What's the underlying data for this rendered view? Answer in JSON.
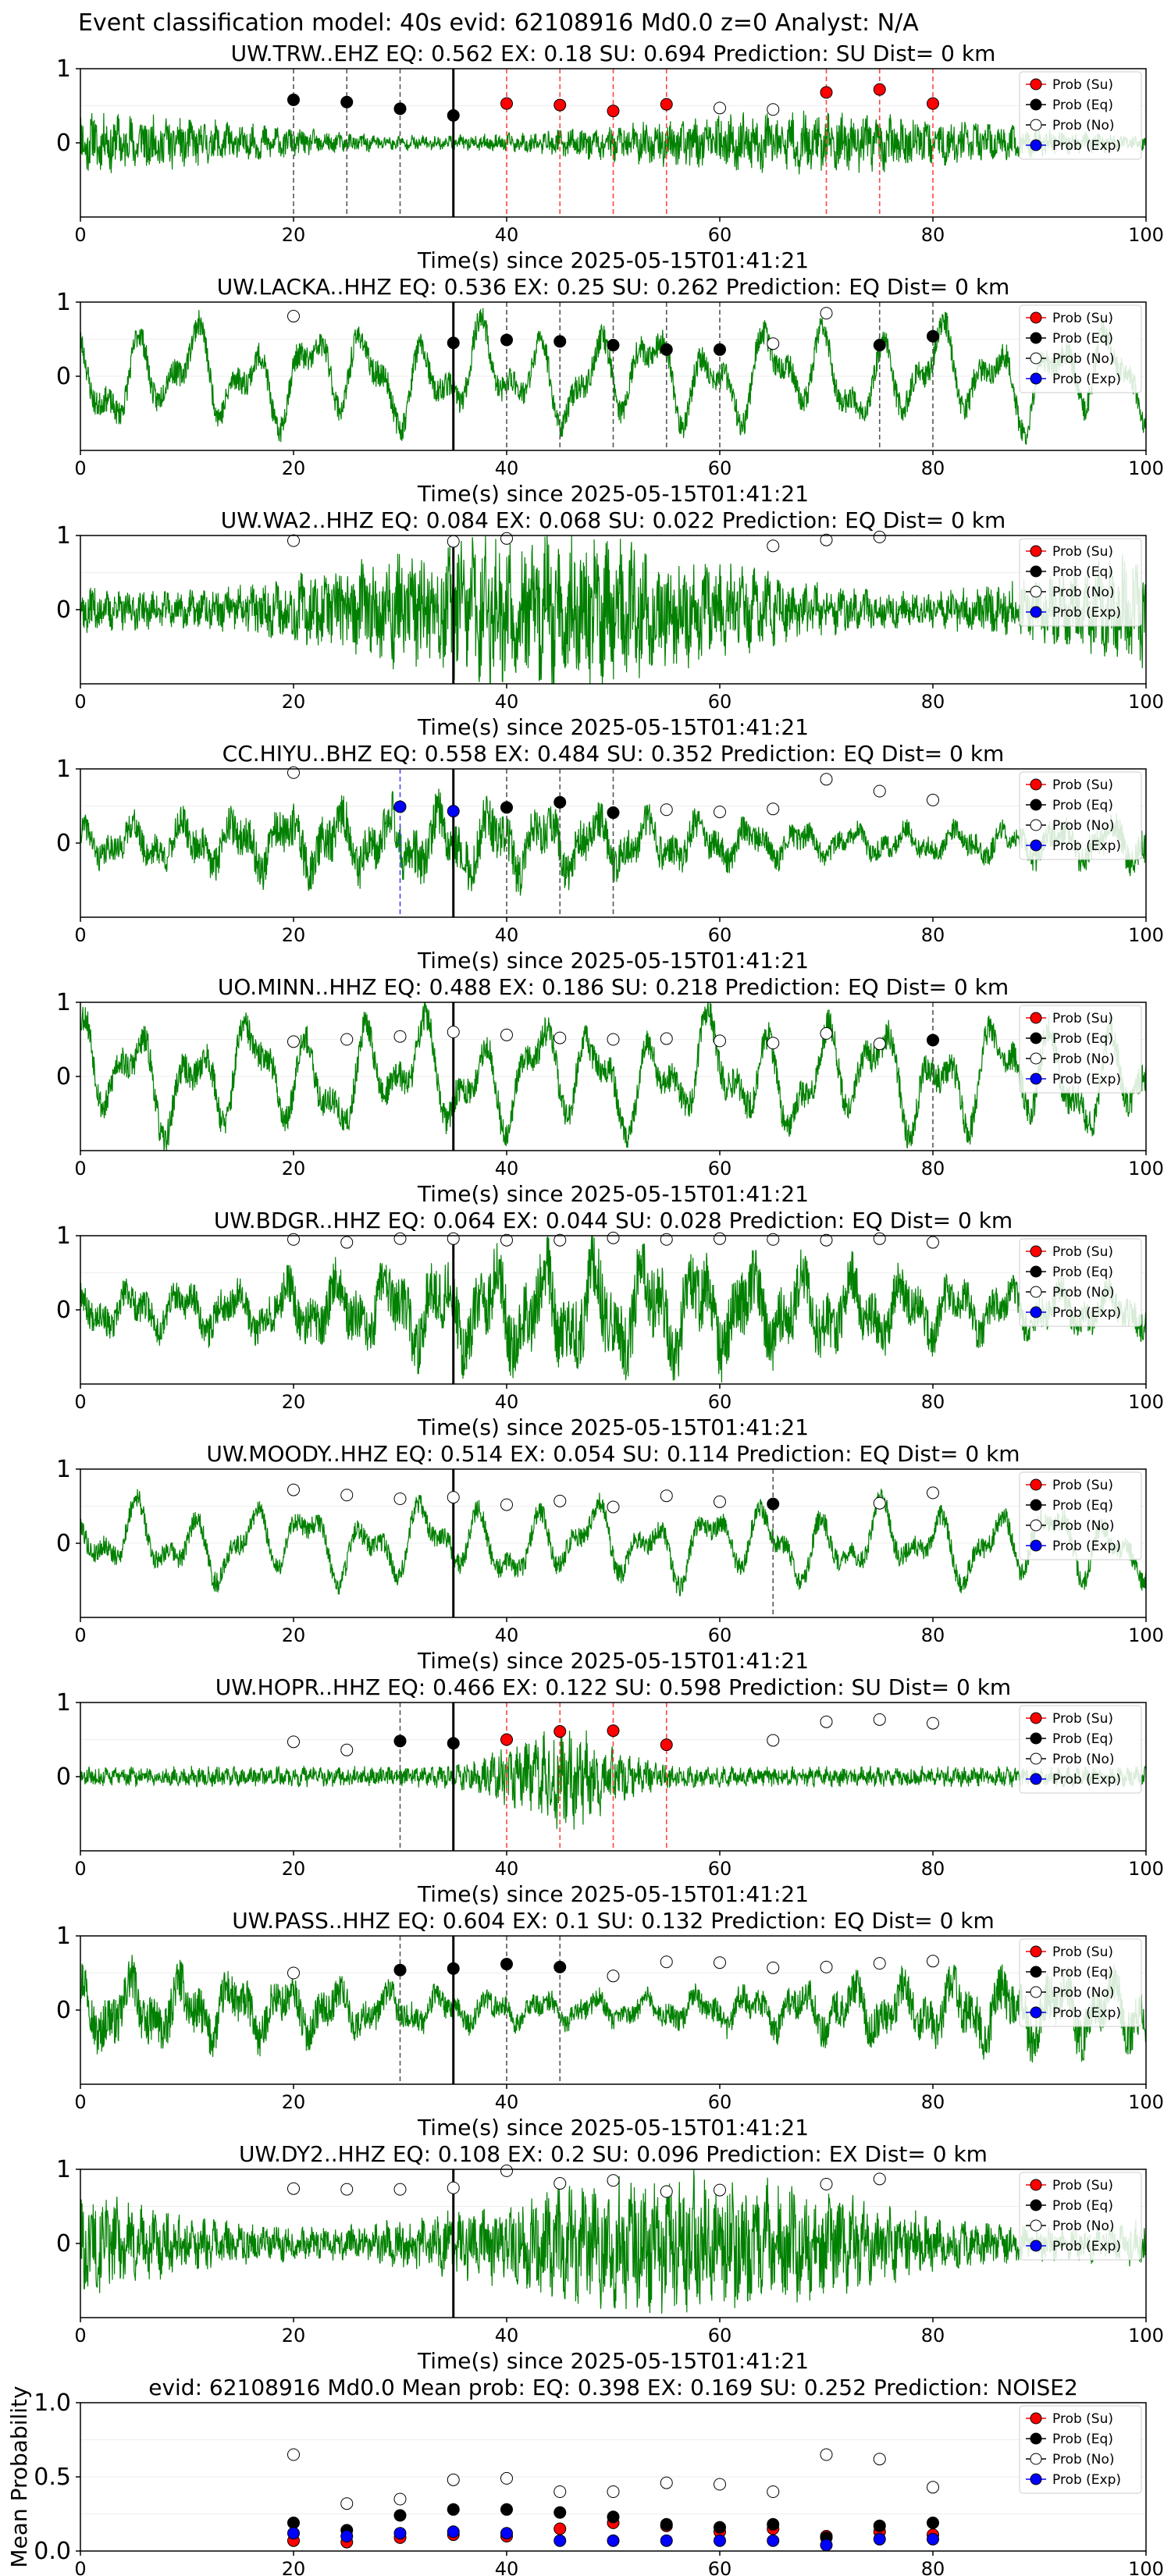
{
  "suptitle": "Event classification model: 40s evid: 62108916 Md0.0 z=0 Analyst: N/A",
  "legend": [
    "Prob (Su)",
    "Prob (Eq)",
    "Prob (No)",
    "Prob (Exp)"
  ],
  "colors": {
    "su": "#ff0000",
    "eq": "#000000",
    "no": "#ffffff",
    "exp": "#0000ff",
    "trace": "#008000"
  },
  "xlabel": "Time(s) since 2025-05-15T01:41:21",
  "chart_data": [
    {
      "type": "line",
      "title": "UW.TRW..EHZ   EQ: 0.562  EX: 0.18  SU: 0.694   Prediction: SU    Dist= 0 km",
      "xlim": [
        0,
        100
      ],
      "ylim": [
        -1,
        1
      ],
      "xticks": [
        0,
        20,
        40,
        60,
        80,
        100
      ],
      "yticks": [
        0,
        1
      ],
      "trace": {
        "seed": 11,
        "style": "hf",
        "amp": 0.22
      },
      "pick_line": 35,
      "points": [
        {
          "x": 20,
          "y": 0.58,
          "c": "eq"
        },
        {
          "x": 25,
          "y": 0.55,
          "c": "eq"
        },
        {
          "x": 30,
          "y": 0.46,
          "c": "eq"
        },
        {
          "x": 35,
          "y": 0.37,
          "c": "eq"
        },
        {
          "x": 40,
          "y": 0.53,
          "c": "su"
        },
        {
          "x": 45,
          "y": 0.51,
          "c": "su"
        },
        {
          "x": 50,
          "y": 0.43,
          "c": "su"
        },
        {
          "x": 55,
          "y": 0.52,
          "c": "su"
        },
        {
          "x": 60,
          "y": 0.47,
          "c": "no"
        },
        {
          "x": 65,
          "y": 0.45,
          "c": "no"
        },
        {
          "x": 70,
          "y": 0.68,
          "c": "su"
        },
        {
          "x": 75,
          "y": 0.72,
          "c": "su"
        },
        {
          "x": 80,
          "y": 0.53,
          "c": "su"
        }
      ]
    },
    {
      "type": "line",
      "title": "UW.LACKA..HHZ   EQ: 0.536  EX: 0.25  SU: 0.262   Prediction: EQ    Dist= 0 km",
      "xlim": [
        0,
        100
      ],
      "ylim": [
        -1,
        1
      ],
      "xticks": [
        0,
        20,
        40,
        60,
        80,
        100
      ],
      "yticks": [
        0,
        1
      ],
      "trace": {
        "seed": 23,
        "style": "lf",
        "amp": 0.7
      },
      "pick_line": 35,
      "points": [
        {
          "x": 20,
          "y": 0.81,
          "c": "no"
        },
        {
          "x": 35,
          "y": 0.45,
          "c": "eq"
        },
        {
          "x": 40,
          "y": 0.49,
          "c": "eq"
        },
        {
          "x": 45,
          "y": 0.47,
          "c": "eq"
        },
        {
          "x": 50,
          "y": 0.42,
          "c": "eq"
        },
        {
          "x": 55,
          "y": 0.36,
          "c": "eq"
        },
        {
          "x": 60,
          "y": 0.36,
          "c": "eq"
        },
        {
          "x": 65,
          "y": 0.44,
          "c": "no"
        },
        {
          "x": 70,
          "y": 0.85,
          "c": "no"
        },
        {
          "x": 75,
          "y": 0.42,
          "c": "eq"
        },
        {
          "x": 80,
          "y": 0.54,
          "c": "eq"
        }
      ]
    },
    {
      "type": "line",
      "title": "UW.WA2..HHZ   EQ: 0.084  EX: 0.068  SU: 0.022   Prediction: EQ    Dist= 0 km",
      "xlim": [
        0,
        100
      ],
      "ylim": [
        -1,
        1
      ],
      "xticks": [
        0,
        20,
        40,
        60,
        80,
        100
      ],
      "yticks": [
        0,
        1
      ],
      "trace": {
        "seed": 37,
        "style": "hf",
        "amp": 0.55
      },
      "pick_line": 35,
      "points": [
        {
          "x": 20,
          "y": 0.93,
          "c": "no"
        },
        {
          "x": 35,
          "y": 0.92,
          "c": "no"
        },
        {
          "x": 40,
          "y": 0.96,
          "c": "no"
        },
        {
          "x": 65,
          "y": 0.86,
          "c": "no"
        },
        {
          "x": 70,
          "y": 0.94,
          "c": "no"
        },
        {
          "x": 75,
          "y": 0.98,
          "c": "no"
        }
      ]
    },
    {
      "type": "line",
      "title": "CC.HIYU..BHZ   EQ: 0.558  EX: 0.484  SU: 0.352   Prediction: EQ    Dist= 0 km",
      "xlim": [
        0,
        100
      ],
      "ylim": [
        -1,
        1
      ],
      "xticks": [
        0,
        20,
        40,
        60,
        80,
        100
      ],
      "yticks": [
        0,
        1
      ],
      "trace": {
        "seed": 41,
        "style": "mix",
        "amp": 0.5
      },
      "pick_line": 35,
      "points": [
        {
          "x": 20,
          "y": 0.95,
          "c": "no"
        },
        {
          "x": 30,
          "y": 0.49,
          "c": "exp"
        },
        {
          "x": 35,
          "y": 0.43,
          "c": "exp"
        },
        {
          "x": 40,
          "y": 0.48,
          "c": "eq"
        },
        {
          "x": 45,
          "y": 0.55,
          "c": "eq"
        },
        {
          "x": 50,
          "y": 0.41,
          "c": "eq"
        },
        {
          "x": 55,
          "y": 0.45,
          "c": "no"
        },
        {
          "x": 60,
          "y": 0.42,
          "c": "no"
        },
        {
          "x": 65,
          "y": 0.46,
          "c": "no"
        },
        {
          "x": 70,
          "y": 0.86,
          "c": "no"
        },
        {
          "x": 75,
          "y": 0.7,
          "c": "no"
        },
        {
          "x": 80,
          "y": 0.58,
          "c": "no"
        }
      ]
    },
    {
      "type": "line",
      "title": "UO.MINN..HHZ   EQ: 0.488  EX: 0.186  SU: 0.218   Prediction: EQ    Dist= 0 km",
      "xlim": [
        0,
        100
      ],
      "ylim": [
        -1,
        1
      ],
      "xticks": [
        0,
        20,
        40,
        60,
        80,
        100
      ],
      "yticks": [
        0,
        1
      ],
      "trace": {
        "seed": 53,
        "style": "lf",
        "amp": 0.8
      },
      "pick_line": 35,
      "points": [
        {
          "x": 20,
          "y": 0.47,
          "c": "no"
        },
        {
          "x": 25,
          "y": 0.5,
          "c": "no"
        },
        {
          "x": 30,
          "y": 0.54,
          "c": "no"
        },
        {
          "x": 35,
          "y": 0.6,
          "c": "no"
        },
        {
          "x": 40,
          "y": 0.56,
          "c": "no"
        },
        {
          "x": 45,
          "y": 0.52,
          "c": "no"
        },
        {
          "x": 50,
          "y": 0.5,
          "c": "no"
        },
        {
          "x": 55,
          "y": 0.51,
          "c": "no"
        },
        {
          "x": 60,
          "y": 0.48,
          "c": "no"
        },
        {
          "x": 65,
          "y": 0.45,
          "c": "no"
        },
        {
          "x": 70,
          "y": 0.58,
          "c": "no"
        },
        {
          "x": 75,
          "y": 0.44,
          "c": "no"
        },
        {
          "x": 80,
          "y": 0.49,
          "c": "eq"
        }
      ]
    },
    {
      "type": "line",
      "title": "UW.BDGR..HHZ   EQ: 0.064  EX: 0.044  SU: 0.028   Prediction: EQ    Dist= 0 km",
      "xlim": [
        0,
        100
      ],
      "ylim": [
        -1,
        1
      ],
      "xticks": [
        0,
        20,
        40,
        60,
        80,
        100
      ],
      "yticks": [
        0,
        1
      ],
      "trace": {
        "seed": 67,
        "style": "mix",
        "amp": 0.75
      },
      "pick_line": 35,
      "points": [
        {
          "x": 20,
          "y": 0.95,
          "c": "no"
        },
        {
          "x": 25,
          "y": 0.91,
          "c": "no"
        },
        {
          "x": 30,
          "y": 0.96,
          "c": "no"
        },
        {
          "x": 35,
          "y": 0.96,
          "c": "no"
        },
        {
          "x": 40,
          "y": 0.94,
          "c": "no"
        },
        {
          "x": 45,
          "y": 0.94,
          "c": "no"
        },
        {
          "x": 50,
          "y": 0.97,
          "c": "no"
        },
        {
          "x": 55,
          "y": 0.95,
          "c": "no"
        },
        {
          "x": 60,
          "y": 0.96,
          "c": "no"
        },
        {
          "x": 65,
          "y": 0.95,
          "c": "no"
        },
        {
          "x": 70,
          "y": 0.94,
          "c": "no"
        },
        {
          "x": 75,
          "y": 0.96,
          "c": "no"
        },
        {
          "x": 80,
          "y": 0.91,
          "c": "no"
        }
      ]
    },
    {
      "type": "line",
      "title": "UW.MOODY..HHZ   EQ: 0.514  EX: 0.054  SU: 0.114   Prediction: EQ    Dist= 0 km",
      "xlim": [
        0,
        100
      ],
      "ylim": [
        -1,
        1
      ],
      "xticks": [
        0,
        20,
        40,
        60,
        80,
        100
      ],
      "yticks": [
        0,
        1
      ],
      "trace": {
        "seed": 79,
        "style": "lf",
        "amp": 0.55
      },
      "pick_line": 35,
      "points": [
        {
          "x": 20,
          "y": 0.72,
          "c": "no"
        },
        {
          "x": 25,
          "y": 0.65,
          "c": "no"
        },
        {
          "x": 30,
          "y": 0.6,
          "c": "no"
        },
        {
          "x": 35,
          "y": 0.62,
          "c": "no"
        },
        {
          "x": 40,
          "y": 0.52,
          "c": "no"
        },
        {
          "x": 45,
          "y": 0.57,
          "c": "no"
        },
        {
          "x": 50,
          "y": 0.49,
          "c": "no"
        },
        {
          "x": 55,
          "y": 0.64,
          "c": "no"
        },
        {
          "x": 60,
          "y": 0.56,
          "c": "no"
        },
        {
          "x": 65,
          "y": 0.53,
          "c": "eq"
        },
        {
          "x": 75,
          "y": 0.54,
          "c": "no"
        },
        {
          "x": 80,
          "y": 0.68,
          "c": "no"
        }
      ]
    },
    {
      "type": "line",
      "title": "UW.HOPR..HHZ   EQ: 0.466  EX: 0.122  SU: 0.598   Prediction: SU    Dist= 0 km",
      "xlim": [
        0,
        100
      ],
      "ylim": [
        -1,
        1
      ],
      "xticks": [
        0,
        20,
        40,
        60,
        80,
        100
      ],
      "yticks": [
        0,
        1
      ],
      "trace": {
        "seed": 83,
        "style": "event",
        "amp": 0.3
      },
      "pick_line": 35,
      "points": [
        {
          "x": 20,
          "y": 0.47,
          "c": "no"
        },
        {
          "x": 25,
          "y": 0.36,
          "c": "no"
        },
        {
          "x": 30,
          "y": 0.48,
          "c": "eq"
        },
        {
          "x": 35,
          "y": 0.45,
          "c": "eq"
        },
        {
          "x": 40,
          "y": 0.5,
          "c": "su"
        },
        {
          "x": 45,
          "y": 0.61,
          "c": "su"
        },
        {
          "x": 50,
          "y": 0.62,
          "c": "su"
        },
        {
          "x": 55,
          "y": 0.43,
          "c": "su"
        },
        {
          "x": 65,
          "y": 0.49,
          "c": "no"
        },
        {
          "x": 70,
          "y": 0.74,
          "c": "no"
        },
        {
          "x": 75,
          "y": 0.77,
          "c": "no"
        },
        {
          "x": 80,
          "y": 0.72,
          "c": "no"
        }
      ]
    },
    {
      "type": "line",
      "title": "UW.PASS..HHZ   EQ: 0.604  EX: 0.1  SU: 0.132   Prediction: EQ    Dist= 0 km",
      "xlim": [
        0,
        100
      ],
      "ylim": [
        -1,
        1
      ],
      "xticks": [
        0,
        20,
        40,
        60,
        80,
        100
      ],
      "yticks": [
        0,
        1
      ],
      "trace": {
        "seed": 97,
        "style": "mix",
        "amp": 0.5
      },
      "pick_line": 35,
      "points": [
        {
          "x": 20,
          "y": 0.5,
          "c": "no"
        },
        {
          "x": 30,
          "y": 0.54,
          "c": "eq"
        },
        {
          "x": 35,
          "y": 0.56,
          "c": "eq"
        },
        {
          "x": 40,
          "y": 0.62,
          "c": "eq"
        },
        {
          "x": 45,
          "y": 0.58,
          "c": "eq"
        },
        {
          "x": 50,
          "y": 0.46,
          "c": "no"
        },
        {
          "x": 55,
          "y": 0.65,
          "c": "no"
        },
        {
          "x": 60,
          "y": 0.64,
          "c": "no"
        },
        {
          "x": 65,
          "y": 0.57,
          "c": "no"
        },
        {
          "x": 70,
          "y": 0.58,
          "c": "no"
        },
        {
          "x": 75,
          "y": 0.63,
          "c": "no"
        },
        {
          "x": 80,
          "y": 0.66,
          "c": "no"
        }
      ]
    },
    {
      "type": "line",
      "title": "UW.DY2..HHZ   EQ: 0.108  EX: 0.2  SU: 0.096   Prediction: EX    Dist= 0 km",
      "xlim": [
        0,
        100
      ],
      "ylim": [
        -1,
        1
      ],
      "xticks": [
        0,
        20,
        40,
        60,
        80,
        100
      ],
      "yticks": [
        0,
        1
      ],
      "trace": {
        "seed": 101,
        "style": "hf",
        "amp": 0.5
      },
      "pick_line": 35,
      "points": [
        {
          "x": 20,
          "y": 0.74,
          "c": "no"
        },
        {
          "x": 25,
          "y": 0.73,
          "c": "no"
        },
        {
          "x": 30,
          "y": 0.73,
          "c": "no"
        },
        {
          "x": 35,
          "y": 0.75,
          "c": "no"
        },
        {
          "x": 40,
          "y": 0.98,
          "c": "no"
        },
        {
          "x": 45,
          "y": 0.81,
          "c": "no"
        },
        {
          "x": 50,
          "y": 0.85,
          "c": "no"
        },
        {
          "x": 55,
          "y": 0.7,
          "c": "no"
        },
        {
          "x": 60,
          "y": 0.72,
          "c": "no"
        },
        {
          "x": 70,
          "y": 0.8,
          "c": "no"
        },
        {
          "x": 75,
          "y": 0.87,
          "c": "no"
        }
      ]
    },
    {
      "type": "scatter",
      "title": "evid: 62108916  Md0.0   Mean prob:   EQ: 0.398  EX: 0.169  SU: 0.252   Prediction: NOISE2",
      "ylabel": "Mean Probability",
      "xlim": [
        0,
        100
      ],
      "ylim": [
        0,
        1
      ],
      "xticks": [
        0,
        20,
        40,
        60,
        80,
        100
      ],
      "yticks": [
        0.0,
        0.5,
        1.0
      ],
      "x": [
        20,
        25,
        30,
        35,
        40,
        45,
        50,
        55,
        60,
        65,
        70,
        75,
        80
      ],
      "series": [
        {
          "name": "Prob (Su)",
          "c": "su",
          "values": [
            0.07,
            0.06,
            0.09,
            0.11,
            0.1,
            0.15,
            0.19,
            0.17,
            0.13,
            0.15,
            0.1,
            0.13,
            0.11
          ]
        },
        {
          "name": "Prob (Eq)",
          "c": "eq",
          "values": [
            0.19,
            0.14,
            0.24,
            0.28,
            0.28,
            0.26,
            0.23,
            0.18,
            0.16,
            0.18,
            0.09,
            0.17,
            0.19
          ]
        },
        {
          "name": "Prob (No)",
          "c": "no",
          "values": [
            0.65,
            0.32,
            0.35,
            0.48,
            0.49,
            0.4,
            0.4,
            0.46,
            0.45,
            0.4,
            0.65,
            0.62,
            0.43
          ]
        },
        {
          "name": "Prob (Exp)",
          "c": "exp",
          "values": [
            0.12,
            0.1,
            0.12,
            0.13,
            0.12,
            0.07,
            0.07,
            0.07,
            0.07,
            0.07,
            0.04,
            0.08,
            0.08
          ]
        }
      ]
    }
  ]
}
